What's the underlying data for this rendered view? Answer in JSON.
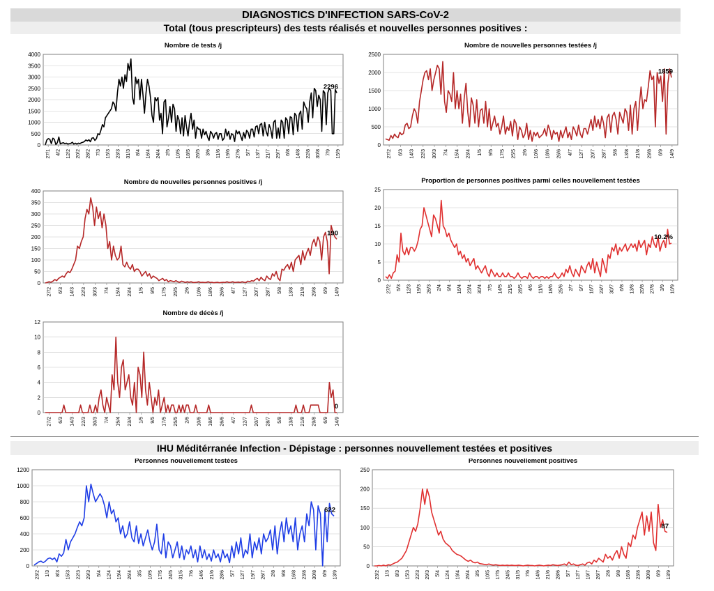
{
  "header": {
    "title": "DIAGNOSTICS D'INFECTION SARS-CoV-2",
    "subtitle": "Total (tous prescripteurs) des tests réalisés et nouvelles personnes positives :"
  },
  "section2": {
    "title": "IHU Méditérranée Infection - Dépistage : personnes nouvellement testées et positives"
  },
  "chart_data": [
    {
      "id": "tests",
      "type": "line",
      "title": "Nombre de tests /j",
      "color": "#000000",
      "ylim": [
        0,
        4000
      ],
      "yticks": [
        0,
        500,
        1000,
        1500,
        2000,
        2500,
        3000,
        3500,
        4000
      ],
      "xticks": [
        "27/1",
        "4/2",
        "12/2",
        "20/2",
        "28/2",
        "7/3",
        "15/3",
        "23/3",
        "31/3",
        "8/4",
        "16/4",
        "24/4",
        "2/5",
        "10/5",
        "18/5",
        "26/5",
        "3/6",
        "11/6",
        "19/6",
        "27/6",
        "5/7",
        "13/7",
        "21/7",
        "29/7",
        "6/8",
        "14/8",
        "22/8",
        "30/8",
        "7/9",
        "15/9"
      ],
      "end_label": "2296",
      "values": [
        10,
        220,
        280,
        250,
        60,
        300,
        250,
        20,
        100,
        350,
        50,
        80,
        100,
        60,
        80,
        40,
        60,
        70,
        120,
        40,
        80,
        40,
        80,
        60,
        100,
        120,
        150,
        220,
        180,
        230,
        140,
        300,
        320,
        200,
        280,
        500,
        450,
        650,
        900,
        800,
        1200,
        1300,
        1400,
        1500,
        1600,
        1900,
        1800,
        1500,
        2300,
        2900,
        2600,
        3000,
        2500,
        3100,
        2800,
        3600,
        3300,
        3800,
        2100,
        1800,
        3000,
        2700,
        2900,
        2000,
        2900,
        2200,
        1400,
        2300,
        2900,
        2600,
        2100,
        1300,
        1000,
        2100,
        1950,
        2100,
        1100,
        1400,
        500,
        1900,
        2000,
        800,
        1200,
        1700,
        1000,
        1800,
        1600,
        600,
        1300,
        1100,
        500,
        1200,
        400,
        1300,
        800,
        400,
        1000,
        1400,
        700,
        1100,
        300,
        800,
        700,
        700,
        300,
        700,
        450,
        600,
        350,
        200,
        600,
        500,
        300,
        500,
        550,
        250,
        500,
        500,
        200,
        300,
        700,
        400,
        600,
        250,
        500,
        450,
        150,
        650,
        500,
        600,
        400,
        200,
        550,
        300,
        650,
        550,
        300,
        700,
        700,
        350,
        800,
        850,
        500,
        900,
        950,
        400,
        1000,
        600,
        400,
        900,
        700,
        300,
        1000,
        1100,
        300,
        750,
        300,
        1100,
        1000,
        300,
        1200,
        1100,
        500,
        1250,
        1200,
        450,
        1400,
        1300,
        600,
        1350,
        1500,
        700,
        1900,
        1700,
        1600,
        1000,
        1900,
        2300,
        1200,
        2500,
        2400,
        1700,
        2200,
        2000,
        600,
        2400,
        2300,
        900,
        2300,
        2500,
        2400,
        500,
        500,
        2450,
        2300
      ]
    },
    {
      "id": "newtested",
      "type": "line",
      "title": "Nombre de nouvelles personnes testées /j",
      "color": "#b52727",
      "ylim": [
        0,
        2500
      ],
      "yticks": [
        0,
        500,
        1000,
        1500,
        2000,
        2500
      ],
      "xticks": [
        "27/2",
        "6/3",
        "14/3",
        "22/3",
        "30/3",
        "7/4",
        "15/4",
        "23/4",
        "1/5",
        "9/5",
        "17/5",
        "25/5",
        "2/6",
        "10/6",
        "18/6",
        "26/6",
        "4/7",
        "12/7",
        "20/7",
        "28/7",
        "5/8",
        "13/8",
        "21/8",
        "29/8",
        "6/9",
        "14/9"
      ],
      "end_label": "1859",
      "values": [
        170,
        150,
        130,
        260,
        180,
        300,
        230,
        200,
        350,
        280,
        320,
        550,
        600,
        450,
        500,
        800,
        1000,
        900,
        600,
        1200,
        1500,
        1800,
        2000,
        2050,
        1800,
        2100,
        1500,
        1800,
        2000,
        2200,
        2100,
        1400,
        2300,
        1200,
        900,
        1500,
        1400,
        1200,
        2000,
        1000,
        1500,
        1000,
        1400,
        600,
        1300,
        1700,
        900,
        500,
        1300,
        1100,
        600,
        1250,
        500,
        950,
        1000,
        600,
        1200,
        500,
        1000,
        400,
        600,
        800,
        500,
        600,
        300,
        500,
        800,
        300,
        500,
        400,
        650,
        250,
        700,
        600,
        150,
        500,
        400,
        200,
        300,
        600,
        150,
        400,
        100,
        350,
        250,
        350,
        200,
        250,
        300,
        450,
        250,
        550,
        400,
        150,
        400,
        300,
        350,
        100,
        400,
        200,
        350,
        500,
        200,
        350,
        150,
        500,
        400,
        250,
        550,
        300,
        200,
        450,
        450,
        300,
        500,
        700,
        400,
        800,
        500,
        700,
        450,
        800,
        600,
        200,
        750,
        850,
        350,
        800,
        900,
        700,
        300,
        900,
        750,
        600,
        1000,
        900,
        400,
        1100,
        300,
        1000,
        1200,
        400,
        1100,
        1600,
        1000,
        1250,
        1200,
        1600,
        2050,
        1800,
        1900,
        500,
        2000,
        1700,
        1900,
        1200,
        2100,
        300,
        1700,
        2100,
        1859
      ]
    },
    {
      "id": "newpositive",
      "type": "line",
      "title": "Nombre de nouvelles personnes positives /j",
      "color": "#b52727",
      "ylim": [
        0,
        400
      ],
      "yticks": [
        0,
        50,
        100,
        150,
        200,
        250,
        300,
        350,
        400
      ],
      "xticks": [
        "27/2",
        "6/3",
        "14/3",
        "22/3",
        "30/3",
        "7/4",
        "15/4",
        "23/4",
        "1/5",
        "9/5",
        "17/5",
        "25/5",
        "2/6",
        "10/6",
        "18/6",
        "26/6",
        "4/7",
        "12/7",
        "20/7",
        "28/7",
        "5/8",
        "13/8",
        "21/8",
        "29/8",
        "6/9",
        "14/9"
      ],
      "end_label": "190",
      "values": [
        0,
        2,
        5,
        3,
        8,
        15,
        10,
        20,
        25,
        30,
        25,
        40,
        50,
        45,
        60,
        80,
        100,
        160,
        150,
        180,
        200,
        280,
        320,
        300,
        370,
        330,
        250,
        330,
        280,
        310,
        240,
        300,
        250,
        150,
        180,
        100,
        160,
        120,
        100,
        110,
        160,
        80,
        70,
        90,
        70,
        60,
        80,
        50,
        60,
        60,
        50,
        30,
        40,
        50,
        30,
        40,
        20,
        30,
        25,
        20,
        10,
        15,
        20,
        10,
        15,
        5,
        10,
        8,
        5,
        10,
        5,
        3,
        8,
        5,
        2,
        5,
        3,
        5,
        2,
        2,
        3,
        5,
        2,
        3,
        2,
        2,
        5,
        2,
        3,
        1,
        2,
        3,
        1,
        2,
        3,
        2,
        5,
        2,
        3,
        5,
        2,
        3,
        4,
        2,
        5,
        3,
        2,
        8,
        5,
        10,
        8,
        15,
        20,
        10,
        25,
        15,
        10,
        30,
        20,
        15,
        40,
        30,
        50,
        20,
        10,
        60,
        55,
        70,
        80,
        60,
        90,
        50,
        100,
        110,
        120,
        80,
        140,
        100,
        130,
        150,
        120,
        170,
        190,
        160,
        200,
        180,
        100,
        200,
        220,
        180,
        40,
        250,
        220,
        200,
        190
      ]
    },
    {
      "id": "proportion",
      "type": "line",
      "title": "Proportion de personnes positives parmi celles nouvellement testées",
      "color": "#e03030",
      "ylim": [
        0,
        25
      ],
      "yticks": [
        0,
        5,
        10,
        15,
        20,
        25
      ],
      "xticks": [
        "27/2",
        "5/3",
        "12/3",
        "19/3",
        "26/3",
        "2/4",
        "9/4",
        "16/4",
        "23/4",
        "30/4",
        "7/5",
        "14/5",
        "21/5",
        "28/5",
        "4/6",
        "11/6",
        "18/6",
        "25/6",
        "2/7",
        "9/7",
        "16/7",
        "23/7",
        "30/7",
        "6/8",
        "13/8",
        "20/8",
        "27/8",
        "3/9",
        "10/9"
      ],
      "end_label": "10.2%",
      "values": [
        1,
        0.5,
        1.5,
        0.5,
        2,
        2.5,
        7,
        5,
        13,
        8,
        7,
        9,
        7,
        9,
        9,
        8,
        9,
        11,
        14,
        15,
        20,
        18,
        16,
        14,
        12,
        18,
        17,
        15,
        13,
        22,
        15,
        14,
        12,
        13,
        11,
        10,
        9,
        10,
        7,
        8,
        6,
        7,
        5,
        6,
        4,
        5,
        6,
        3,
        4,
        3,
        2,
        3,
        4,
        2,
        1,
        3,
        2,
        1,
        2,
        1,
        1,
        2,
        1,
        1,
        2,
        1,
        1,
        0.5,
        1,
        2,
        1,
        0.5,
        1,
        1,
        0.5,
        2,
        1,
        0.5,
        1,
        1,
        0.5,
        1,
        1,
        0.5,
        1,
        0.5,
        1,
        1,
        2,
        1,
        0.5,
        1,
        2,
        1,
        3,
        2,
        4,
        2,
        1,
        3,
        2,
        1,
        4,
        3,
        2,
        4,
        5,
        3,
        6,
        2,
        5,
        3,
        1,
        6,
        4,
        2,
        7,
        6,
        9,
        8,
        10,
        7,
        9,
        8,
        9,
        10,
        8,
        9,
        10,
        9,
        10,
        8,
        11,
        9,
        10,
        11,
        7,
        10,
        9,
        12,
        10,
        9,
        12,
        8,
        10,
        11,
        9,
        14,
        10,
        10.2
      ]
    },
    {
      "id": "deaths",
      "type": "line",
      "title": "Nombre de décès /j",
      "color": "#b52727",
      "ylim": [
        0,
        12
      ],
      "yticks": [
        0,
        2,
        4,
        6,
        8,
        10,
        12
      ],
      "xticks": [
        "27/2",
        "6/3",
        "14/3",
        "22/3",
        "30/3",
        "7/4",
        "15/4",
        "23/4",
        "1/5",
        "9/5",
        "17/5",
        "25/5",
        "2/6",
        "10/6",
        "18/6",
        "26/6",
        "4/7",
        "12/7",
        "20/7",
        "28/7",
        "5/8",
        "13/8",
        "21/8",
        "29/8",
        "6/9",
        "14/9"
      ],
      "end_label": "0",
      "values": [
        0,
        0,
        0,
        0,
        0,
        0,
        0,
        0,
        0,
        0,
        1,
        0,
        0,
        0,
        0,
        0,
        0,
        0,
        0,
        1,
        0,
        0,
        0,
        0,
        1,
        0,
        0,
        1,
        0,
        2,
        3,
        1,
        0,
        2,
        1,
        0,
        5,
        3,
        10,
        4,
        2,
        6,
        7,
        3,
        4,
        5,
        2,
        1,
        4,
        0,
        6,
        5,
        2,
        8,
        3,
        1,
        4,
        2,
        0,
        2,
        1,
        3,
        0,
        1,
        2,
        0,
        1,
        0,
        1,
        1,
        0,
        0,
        1,
        0,
        1,
        0,
        1,
        1,
        0,
        0,
        0,
        1,
        0,
        0,
        0,
        0,
        0,
        0,
        1,
        0,
        0,
        0,
        0,
        0,
        0,
        0,
        0,
        0,
        0,
        0,
        0,
        0,
        0,
        0,
        0,
        0,
        0,
        0,
        0,
        0,
        0,
        1,
        0,
        0,
        0,
        0,
        0,
        0,
        0,
        0,
        0,
        0,
        0,
        0,
        0,
        0,
        0,
        0,
        0,
        0,
        0,
        0,
        0,
        0,
        0,
        1,
        0,
        0,
        0,
        1,
        0,
        0,
        0,
        1,
        1,
        1,
        1,
        1,
        0,
        0,
        0,
        0,
        0,
        4,
        2,
        3,
        0,
        0
      ]
    },
    {
      "id": "ihu_tested",
      "type": "line",
      "title": "Personnes nouvellement testées",
      "color": "#1f3ee6",
      "ylim": [
        0,
        1200
      ],
      "yticks": [
        0,
        200,
        400,
        600,
        800,
        1000,
        1200
      ],
      "xticks": [
        "23/2",
        "1/3",
        "8/3",
        "15/3",
        "22/3",
        "29/3",
        "5/4",
        "12/4",
        "19/4",
        "26/4",
        "3/5",
        "10/5",
        "17/5",
        "24/5",
        "31/5",
        "7/6",
        "14/6",
        "21/6",
        "28/6",
        "5/7",
        "12/7",
        "19/7",
        "26/7",
        "2/8",
        "9/8",
        "16/8",
        "23/8",
        "30/8",
        "6/9",
        "13/9"
      ],
      "end_label": "622",
      "values": [
        10,
        30,
        50,
        60,
        40,
        60,
        90,
        100,
        80,
        100,
        50,
        150,
        120,
        160,
        330,
        200,
        300,
        350,
        400,
        480,
        550,
        500,
        600,
        1000,
        800,
        1020,
        900,
        800,
        850,
        900,
        850,
        750,
        600,
        800,
        650,
        700,
        550,
        600,
        400,
        500,
        350,
        400,
        550,
        350,
        300,
        500,
        280,
        400,
        250,
        350,
        450,
        300,
        200,
        300,
        520,
        200,
        150,
        400,
        100,
        300,
        250,
        100,
        200,
        300,
        100,
        250,
        80,
        200,
        150,
        250,
        100,
        200,
        50,
        250,
        100,
        200,
        80,
        150,
        60,
        200,
        100,
        150,
        50,
        200,
        100,
        150,
        40,
        250,
        100,
        300,
        150,
        350,
        100,
        200,
        150,
        400,
        100,
        300,
        200,
        350,
        150,
        400,
        300,
        350,
        450,
        200,
        500,
        150,
        400,
        550,
        300,
        600,
        400,
        500,
        300,
        600,
        200,
        400,
        500,
        300,
        650,
        500,
        800,
        700,
        200,
        750,
        650,
        0,
        700,
        300,
        780,
        650,
        622
      ]
    },
    {
      "id": "ihu_positive",
      "type": "line",
      "title": "Personnes nouvellement positives",
      "color": "#e03030",
      "ylim": [
        0,
        250
      ],
      "yticks": [
        0,
        50,
        100,
        150,
        200,
        250
      ],
      "xticks": [
        "23/2",
        "1/3",
        "8/3",
        "15/3",
        "22/3",
        "29/3",
        "5/4",
        "12/4",
        "19/4",
        "26/4",
        "3/5",
        "10/5",
        "17/5",
        "24/5",
        "31/5",
        "7/6",
        "14/6",
        "21/6",
        "28/6",
        "5/7",
        "12/7",
        "19/7",
        "26/7",
        "2/8",
        "9/8",
        "16/8",
        "23/8",
        "30/8",
        "6/9",
        "13/9"
      ],
      "end_label": "87",
      "values": [
        0,
        0,
        1,
        0,
        2,
        0,
        3,
        2,
        5,
        8,
        10,
        15,
        20,
        30,
        40,
        60,
        80,
        100,
        90,
        110,
        150,
        200,
        160,
        200,
        180,
        140,
        120,
        100,
        80,
        90,
        70,
        60,
        55,
        50,
        40,
        35,
        30,
        28,
        25,
        20,
        15,
        12,
        15,
        10,
        8,
        10,
        6,
        5,
        4,
        3,
        5,
        3,
        2,
        3,
        2,
        1,
        2,
        1,
        2,
        1,
        2,
        1,
        1,
        2,
        1,
        0,
        1,
        2,
        1,
        1,
        0,
        1,
        2,
        1,
        0,
        1,
        2,
        1,
        3,
        2,
        1,
        2,
        3,
        5,
        2,
        10,
        3,
        5,
        2,
        1,
        3,
        5,
        2,
        8,
        10,
        5,
        15,
        10,
        20,
        15,
        10,
        30,
        20,
        25,
        15,
        30,
        40,
        20,
        50,
        30,
        20,
        60,
        50,
        80,
        70,
        100,
        120,
        140,
        80,
        130,
        90,
        140,
        60,
        40,
        160,
        100,
        120,
        90,
        87
      ]
    }
  ]
}
